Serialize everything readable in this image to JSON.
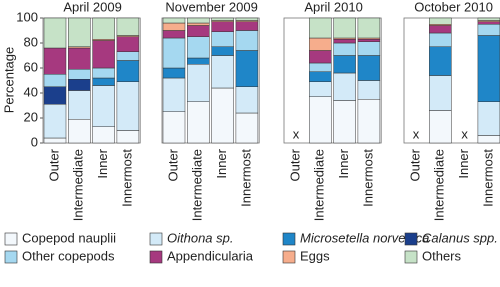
{
  "chart_data": {
    "type": "stacked_bar",
    "y_label": "Percentage",
    "ylim": [
      0,
      100
    ],
    "yticks": [
      0,
      20,
      40,
      60,
      80,
      100
    ],
    "groups": [
      "April 2009",
      "November 2009",
      "April 2010",
      "October 2010"
    ],
    "categories": [
      "Outer",
      "Intermediate",
      "Inner",
      "Innermost",
      "Outer",
      "Intermediate",
      "Inner",
      "Innermost",
      "Outer",
      "Intermediate",
      "Inner",
      "Innermost",
      "Outer",
      "Intermediate",
      "Inner",
      "Innermost"
    ],
    "missing_label": "x",
    "series": [
      {
        "name": "Copepod nauplii",
        "color": "#f3f8fc",
        "values": [
          4,
          19,
          13,
          10,
          25,
          33,
          44,
          24,
          null,
          37,
          34,
          35,
          null,
          26,
          null,
          6
        ]
      },
      {
        "name": "Oithona sp.",
        "color": "#d3eaf8",
        "values": [
          27,
          23,
          33,
          39,
          27,
          30,
          26,
          21,
          null,
          12,
          22,
          15,
          null,
          28,
          null,
          27
        ]
      },
      {
        "name": "Microsetella norvegica",
        "color": "#1f86c8",
        "values": [
          0,
          0,
          6,
          17,
          8,
          5,
          7,
          29,
          null,
          8,
          14,
          20,
          null,
          23,
          null,
          53
        ]
      },
      {
        "name": "Calanus spp.",
        "color": "#1b3f8c",
        "values": [
          14,
          9,
          0,
          0,
          0,
          0,
          0,
          0,
          null,
          0,
          0,
          0,
          null,
          0,
          null,
          0
        ]
      },
      {
        "name": "Other copepods",
        "color": "#a5d8f0",
        "values": [
          10,
          8,
          8,
          7,
          24,
          17,
          12,
          16,
          null,
          7,
          10,
          11,
          null,
          11,
          null,
          9
        ]
      },
      {
        "name": "Appendicularia",
        "color": "#a6397f",
        "values": [
          21,
          17,
          22,
          12,
          6,
          9,
          8,
          7,
          null,
          10,
          3,
          2,
          null,
          6,
          null,
          2
        ]
      },
      {
        "name": "Eggs",
        "color": "#f6ad8c",
        "values": [
          0,
          1,
          1,
          1,
          6,
          2,
          1,
          1,
          null,
          10,
          1,
          1,
          null,
          1,
          null,
          1
        ]
      },
      {
        "name": "Others",
        "color": "#c6e2c7",
        "values": [
          24,
          23,
          17,
          14,
          4,
          4,
          2,
          2,
          null,
          16,
          16,
          16,
          null,
          5,
          null,
          2
        ]
      }
    ]
  }
}
